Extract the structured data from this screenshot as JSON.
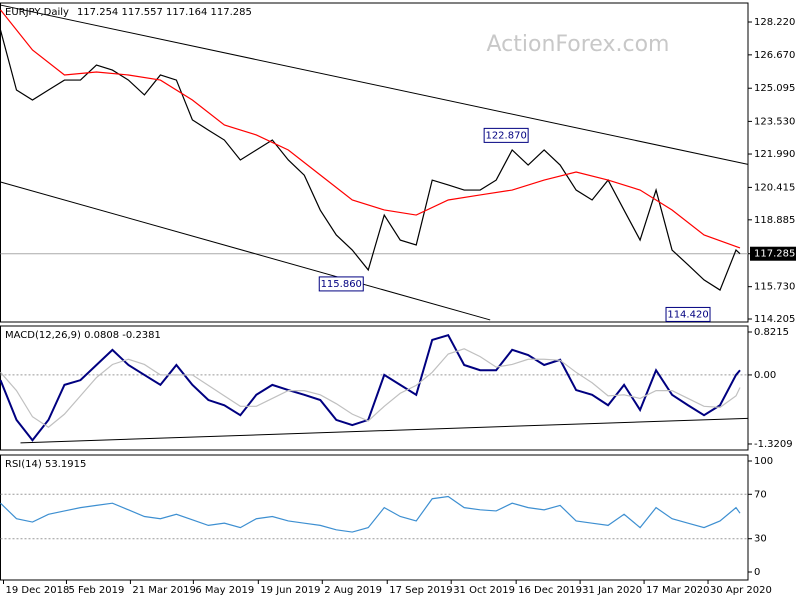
{
  "chart_data": [
    {
      "type": "line",
      "title": "EURJPY,Daily",
      "subtitle": "117.254 117.557 117.164 117.285",
      "watermark": "ActionForex.com",
      "x": [
        0,
        8,
        16,
        24,
        32,
        40,
        48,
        56,
        64,
        72,
        80,
        88,
        96,
        104,
        112,
        120,
        128,
        136,
        144,
        152,
        160,
        168,
        176,
        184,
        192,
        200,
        208,
        216,
        224,
        232,
        240,
        248,
        256,
        264,
        272,
        280,
        288,
        296,
        304,
        312,
        320,
        328,
        336,
        344,
        352,
        360,
        368,
        370
      ],
      "series": [
        {
          "color": "#000000",
          "values": [
            127.84,
            125.01,
            124.54,
            125.01,
            125.48,
            125.48,
            126.19,
            125.95,
            125.48,
            124.78,
            125.72,
            125.48,
            123.6,
            123.12,
            122.65,
            121.71,
            122.18,
            122.65,
            121.71,
            120.99,
            119.34,
            118.17,
            117.46,
            116.52,
            119.11,
            117.93,
            117.7,
            120.76,
            120.53,
            120.29,
            120.29,
            120.76,
            122.18,
            121.47,
            122.18,
            121.47,
            120.29,
            119.82,
            120.76,
            119.34,
            117.93,
            120.29,
            117.46,
            116.76,
            116.05,
            115.57,
            117.46,
            117.285
          ]
        },
        {
          "color": "#ff0000",
          "x": [
            0,
            16,
            32,
            48,
            64,
            80,
            96,
            112,
            128,
            144,
            160,
            176,
            192,
            208,
            224,
            240,
            256,
            272,
            288,
            304,
            320,
            336,
            352,
            370
          ],
          "values": [
            128.79,
            126.9,
            125.72,
            125.86,
            125.72,
            125.48,
            124.54,
            123.36,
            122.89,
            122.18,
            121.0,
            119.82,
            119.35,
            119.11,
            119.82,
            120.06,
            120.29,
            120.76,
            121.14,
            120.76,
            120.29,
            119.35,
            118.17,
            117.56
          ]
        }
      ],
      "xlim": [
        0,
        374
      ],
      "ylim": [
        114.063,
        129.117
      ],
      "yticks": [
        {
          "value": 128.22,
          "label": "128.220"
        },
        {
          "value": 126.67,
          "label": "126.670"
        },
        {
          "value": 125.095,
          "label": "125.095"
        },
        {
          "value": 123.53,
          "label": "123.530"
        },
        {
          "value": 121.99,
          "label": "121.990"
        },
        {
          "value": 120.415,
          "label": "120.415"
        },
        {
          "value": 118.885,
          "label": "118.885"
        },
        {
          "value": 117.285,
          "label": "117.285"
        },
        {
          "value": 115.73,
          "label": "115.730"
        },
        {
          "value": 114.205,
          "label": "114.205"
        }
      ],
      "current_price": 117.285,
      "annotations": [
        {
          "x": 266,
          "value": 122.87,
          "label": "122.870"
        },
        {
          "x": 183.5,
          "value": 115.86,
          "label": "115.860"
        },
        {
          "x": 357,
          "value": 114.42,
          "label": "114.420"
        }
      ],
      "trendlines": [
        {
          "x": [
            0,
            374
          ],
          "y": [
            129.02,
            121.5
          ]
        },
        {
          "x": [
            0,
            245
          ],
          "y": [
            120.67,
            114.16
          ]
        }
      ]
    },
    {
      "type": "line",
      "title": "MACD(12,26,9) 0.0808 -0.2381",
      "x": [
        0,
        8,
        16,
        24,
        32,
        40,
        48,
        56,
        64,
        72,
        80,
        88,
        96,
        104,
        112,
        120,
        128,
        136,
        144,
        152,
        160,
        168,
        176,
        184,
        192,
        200,
        208,
        216,
        224,
        232,
        240,
        248,
        256,
        264,
        272,
        280,
        288,
        296,
        304,
        312,
        320,
        328,
        336,
        344,
        352,
        360,
        368,
        370
      ],
      "series": [
        {
          "color": "#000080",
          "values": [
            -0.1,
            -0.86,
            -1.25,
            -0.86,
            -0.19,
            -0.1,
            0.19,
            0.48,
            0.19,
            0.0,
            -0.19,
            0.19,
            -0.19,
            -0.48,
            -0.58,
            -0.77,
            -0.38,
            -0.19,
            -0.29,
            -0.38,
            -0.48,
            -0.86,
            -0.96,
            -0.86,
            0.0,
            -0.19,
            -0.38,
            0.67,
            0.76,
            0.19,
            0.09,
            0.09,
            0.48,
            0.38,
            0.19,
            0.29,
            -0.29,
            -0.38,
            -0.58,
            -0.19,
            -0.67,
            0.09,
            -0.38,
            -0.58,
            -0.77,
            -0.58,
            0.0,
            0.09
          ]
        },
        {
          "color": "#c0c0c0",
          "values": [
            0.05,
            -0.3,
            -0.8,
            -1.0,
            -0.75,
            -0.4,
            -0.05,
            0.2,
            0.3,
            0.2,
            0.0,
            0.0,
            0.0,
            -0.2,
            -0.4,
            -0.6,
            -0.6,
            -0.45,
            -0.3,
            -0.3,
            -0.38,
            -0.55,
            -0.75,
            -0.88,
            -0.6,
            -0.35,
            -0.2,
            0.05,
            0.4,
            0.5,
            0.35,
            0.15,
            0.2,
            0.3,
            0.3,
            0.28,
            0.05,
            -0.15,
            -0.4,
            -0.38,
            -0.45,
            -0.3,
            -0.3,
            -0.45,
            -0.6,
            -0.62,
            -0.4,
            -0.24
          ]
        }
      ],
      "xlim": [
        0,
        374
      ],
      "ylim": [
        -1.436,
        0.936
      ],
      "yticks": [
        0.8215,
        {
          "value": 0,
          "label": "0.00"
        },
        -1.3209
      ],
      "reference_lines": [
        0
      ],
      "trendlines": [
        {
          "x": [
            10,
            374
          ],
          "y": [
            -1.3,
            -0.83
          ]
        }
      ]
    },
    {
      "type": "line",
      "title": "RSI(14) 53.1915",
      "x": [
        0,
        8,
        16,
        24,
        32,
        40,
        48,
        56,
        64,
        72,
        80,
        88,
        96,
        104,
        112,
        120,
        128,
        136,
        144,
        152,
        160,
        168,
        176,
        184,
        192,
        200,
        208,
        216,
        224,
        232,
        240,
        248,
        256,
        264,
        272,
        280,
        288,
        296,
        304,
        312,
        320,
        328,
        336,
        344,
        352,
        360,
        368,
        370
      ],
      "series": [
        {
          "color": "#3d8fd1",
          "values": [
            62,
            48,
            45,
            52,
            55,
            58,
            60,
            62,
            56,
            50,
            48,
            52,
            47,
            42,
            44,
            40,
            48,
            50,
            46,
            44,
            42,
            38,
            36,
            40,
            58,
            50,
            46,
            66,
            68,
            58,
            56,
            55,
            62,
            58,
            56,
            60,
            46,
            44,
            42,
            52,
            40,
            58,
            48,
            44,
            40,
            46,
            58,
            53
          ]
        }
      ],
      "xlim": [
        0,
        374
      ],
      "ylim": [
        -7.2,
        105.4
      ],
      "yticks": [
        100,
        70,
        30,
        0
      ],
      "reference_lines": [
        70,
        30
      ],
      "xticks": [
        {
          "value": 1.5,
          "label": "19 Dec 2018"
        },
        {
          "value": 33,
          "label": "5 Feb 2019"
        },
        {
          "value": 65,
          "label": "21 Mar 2019"
        },
        {
          "value": 96.5,
          "label": "6 May 2019"
        },
        {
          "value": 129,
          "label": "19 Jun 2019"
        },
        {
          "value": 161,
          "label": "2 Aug 2019"
        },
        {
          "value": 193.5,
          "label": "17 Sep 2019"
        },
        {
          "value": 225.5,
          "label": "31 Oct 2019"
        },
        {
          "value": 258,
          "label": "16 Dec 2019"
        },
        {
          "value": 290,
          "label": "31 Jan 2020"
        },
        {
          "value": 322,
          "label": "17 Mar 2020"
        },
        {
          "value": 354,
          "label": "30 Apr 2020"
        }
      ]
    }
  ]
}
